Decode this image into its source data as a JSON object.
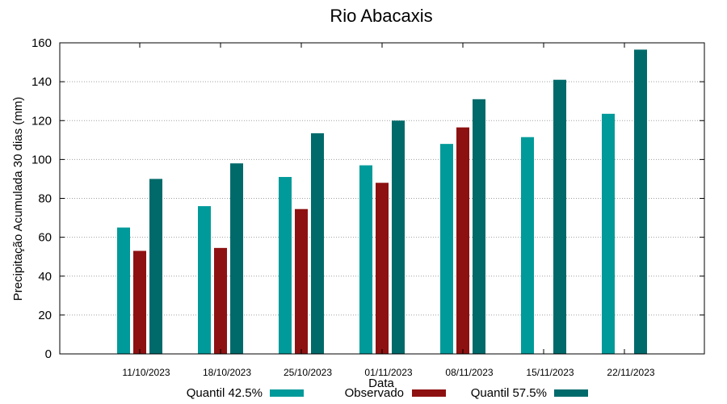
{
  "chart_data": {
    "type": "bar",
    "title": "Rio Abacaxis",
    "xlabel": "Data",
    "ylabel": "Precipitação Acumulada 30 dias (mm)",
    "ylim": [
      0,
      160
    ],
    "yticks": [
      0,
      20,
      40,
      60,
      80,
      100,
      120,
      140,
      160
    ],
    "grid": true,
    "legend_position": "bottom",
    "categories": [
      "11/10/2023",
      "18/10/2023",
      "25/10/2023",
      "01/11/2023",
      "08/11/2023",
      "15/11/2023",
      "22/11/2023"
    ],
    "series": [
      {
        "name": "Quantil 42.5%",
        "color": "#009a9a",
        "values": [
          65,
          76,
          91,
          97,
          108,
          111.5,
          123.5
        ]
      },
      {
        "name": "Observado",
        "color": "#8e1111",
        "values": [
          53,
          54.5,
          74.5,
          88,
          116.5,
          null,
          null
        ]
      },
      {
        "name": "Quantil 57.5%",
        "color": "#006a6a",
        "values": [
          90,
          98,
          113.5,
          120,
          131,
          141,
          156.5
        ]
      }
    ]
  }
}
